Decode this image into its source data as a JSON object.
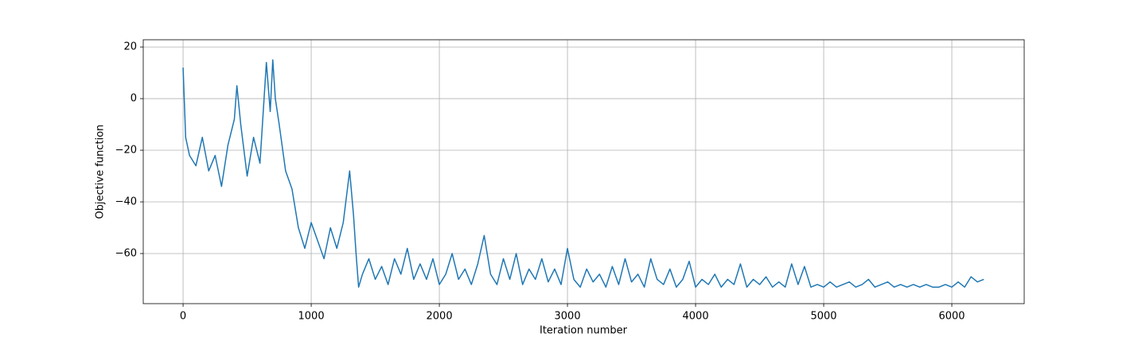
{
  "chart_data": {
    "type": "line",
    "xlabel": "Iteration number",
    "ylabel": "Objective function",
    "xlim": [
      -311,
      6565
    ],
    "ylim": [
      -79.4,
      22.8
    ],
    "xticks": [
      0,
      1000,
      2000,
      3000,
      4000,
      5000,
      6000
    ],
    "yticks": [
      {
        "value": -60,
        "label": "−60"
      },
      {
        "value": -40,
        "label": "−40"
      },
      {
        "value": -20,
        "label": "−20"
      },
      0,
      20
    ],
    "grid": true,
    "series": [
      {
        "color": "#1f77b4",
        "x": [
          0,
          20,
          50,
          100,
          150,
          200,
          250,
          300,
          350,
          400,
          420,
          450,
          500,
          550,
          600,
          650,
          680,
          700,
          720,
          750,
          800,
          850,
          900,
          950,
          1000,
          1050,
          1100,
          1150,
          1200,
          1250,
          1300,
          1330,
          1350,
          1370,
          1400,
          1450,
          1500,
          1550,
          1600,
          1650,
          1700,
          1750,
          1800,
          1850,
          1900,
          1950,
          2000,
          2050,
          2100,
          2150,
          2200,
          2250,
          2300,
          2350,
          2400,
          2450,
          2500,
          2550,
          2600,
          2650,
          2700,
          2750,
          2800,
          2850,
          2900,
          2950,
          3000,
          3050,
          3100,
          3150,
          3200,
          3250,
          3300,
          3350,
          3400,
          3450,
          3500,
          3550,
          3600,
          3650,
          3700,
          3750,
          3800,
          3850,
          3900,
          3950,
          4000,
          4050,
          4100,
          4150,
          4200,
          4250,
          4300,
          4350,
          4400,
          4450,
          4500,
          4550,
          4600,
          4650,
          4700,
          4750,
          4800,
          4850,
          4900,
          4950,
          5000,
          5050,
          5100,
          5150,
          5200,
          5250,
          5300,
          5350,
          5400,
          5450,
          5500,
          5550,
          5600,
          5650,
          5700,
          5750,
          5800,
          5850,
          5900,
          5950,
          6000,
          6050,
          6100,
          6150,
          6200,
          6250
        ],
        "values": [
          12,
          -15,
          -22,
          -26,
          -15,
          -28,
          -22,
          -34,
          -18,
          -8,
          5,
          -10,
          -30,
          -15,
          -25,
          14,
          -5,
          15,
          0,
          -10,
          -28,
          -35,
          -50,
          -58,
          -48,
          -55,
          -62,
          -50,
          -58,
          -48,
          -28,
          -45,
          -60,
          -73,
          -68,
          -62,
          -70,
          -65,
          -72,
          -62,
          -68,
          -58,
          -70,
          -64,
          -70,
          -62,
          -72,
          -68,
          -60,
          -70,
          -66,
          -72,
          -64,
          -53,
          -68,
          -72,
          -62,
          -70,
          -60,
          -72,
          -66,
          -70,
          -62,
          -71,
          -66,
          -72,
          -58,
          -70,
          -73,
          -66,
          -71,
          -68,
          -73,
          -65,
          -72,
          -62,
          -71,
          -68,
          -73,
          -62,
          -70,
          -72,
          -66,
          -73,
          -70,
          -63,
          -73,
          -70,
          -72,
          -68,
          -73,
          -70,
          -72,
          -64,
          -73,
          -70,
          -72,
          -69,
          -73,
          -71,
          -73,
          -64,
          -72,
          -65,
          -73,
          -72,
          -73,
          -71,
          -73,
          -72,
          -71,
          -73,
          -72,
          -70,
          -73,
          -72,
          -71,
          -73,
          -72,
          -73,
          -72,
          -73,
          -72,
          -73,
          -73,
          -72,
          -73,
          -71,
          -73,
          -69,
          -71,
          -70
        ]
      }
    ]
  }
}
